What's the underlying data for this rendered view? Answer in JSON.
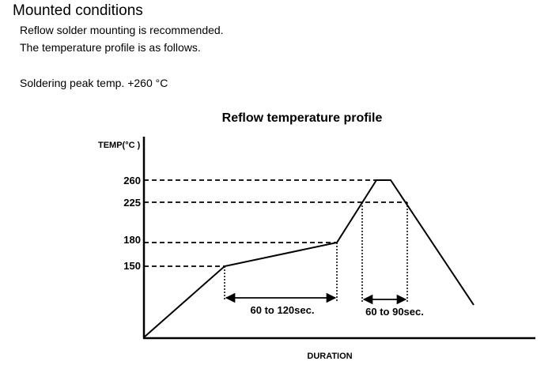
{
  "header": {
    "title": "Mounted conditions",
    "line1": "Reflow solder mounting is recommended.",
    "line2": "The temperature profile is as follows.",
    "line3": "Soldering peak temp. +260 °C"
  },
  "diagram": {
    "title": "Reflow temperature profile",
    "y_axis_label": "TEMP(°C )",
    "x_axis_label": "DURATION",
    "temp_levels": [
      {
        "label": "260"
      },
      {
        "label": "225"
      },
      {
        "label": "180"
      },
      {
        "label": "150"
      }
    ],
    "durations": [
      {
        "label": "60 to 120sec."
      },
      {
        "label": "60 to 90sec."
      }
    ]
  }
}
